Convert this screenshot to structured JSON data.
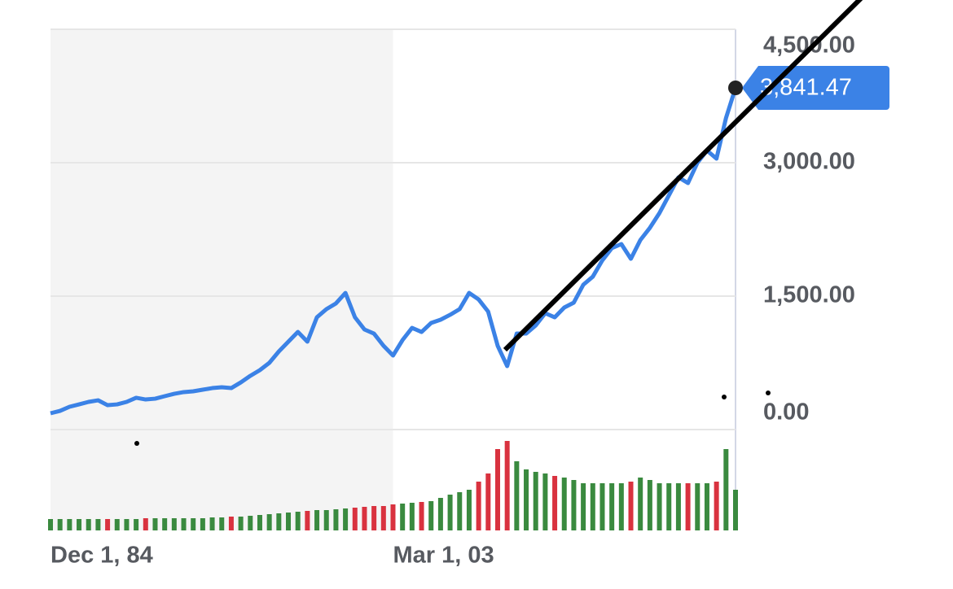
{
  "chart_data": {
    "type": "line",
    "categories": [
      "Dec 1, 84",
      null,
      null,
      null,
      null,
      null,
      null,
      null,
      null,
      null,
      null,
      null,
      null,
      null,
      null,
      null,
      null,
      null,
      null,
      null,
      null,
      null,
      null,
      null,
      null,
      null,
      null,
      null,
      null,
      null,
      null,
      null,
      null,
      null,
      null,
      null,
      "Mar 1, 03",
      null,
      null,
      null,
      null,
      null,
      null,
      null,
      null,
      null,
      null,
      null,
      null,
      null,
      null,
      null,
      null,
      null,
      null,
      null,
      null,
      null,
      null,
      null,
      null,
      null,
      null,
      null,
      null,
      null,
      null,
      null,
      null,
      null,
      null,
      null,
      null
    ],
    "series": [
      {
        "color": "#3b82e6",
        "values": [
          183,
          210,
          256,
          283,
          311,
          329,
          274,
          283,
          311,
          357,
          338,
          347,
          375,
          402,
          421,
          430,
          448,
          466,
          476,
          466,
          530,
          604,
          668,
          750,
          878,
          988,
          1097,
          988,
          1262,
          1354,
          1418,
          1536,
          1262,
          1125,
          1079,
          942,
          832,
          1006,
          1143,
          1097,
          1198,
          1235,
          1290,
          1354,
          1536,
          1463,
          1326,
          942,
          713,
          1079,
          1079,
          1171,
          1308,
          1262,
          1372,
          1427,
          1628,
          1719,
          1902,
          2040,
          2085,
          1920,
          2131,
          2268,
          2433,
          2634,
          2835,
          2771,
          3000,
          3137,
          3046,
          3503,
          3841.47
        ],
        "value_labels": [
          null,
          null,
          null,
          null,
          null,
          null,
          null,
          null,
          null,
          null,
          null,
          null,
          null,
          null,
          null,
          null,
          null,
          null,
          null,
          null,
          null,
          null,
          null,
          null,
          null,
          null,
          null,
          null,
          null,
          null,
          null,
          null,
          null,
          null,
          null,
          null,
          null,
          null,
          null,
          null,
          null,
          null,
          null,
          null,
          null,
          null,
          null,
          null,
          null,
          null,
          null,
          null,
          null,
          null,
          null,
          null,
          null,
          null,
          null,
          null,
          null,
          null,
          null,
          null,
          null,
          null,
          null,
          null,
          null,
          null,
          null,
          null,
          "3,841.47"
        ]
      }
    ],
    "volume": {
      "up_color": "#3a8a3f",
      "down_color": "#d9323f",
      "values": [
        14,
        14,
        14,
        14,
        14,
        14,
        14,
        14,
        14,
        14,
        15,
        15,
        15,
        15,
        15,
        15,
        15,
        16,
        16,
        17,
        17,
        18,
        19,
        20,
        21,
        22,
        23,
        24,
        25,
        25,
        26,
        27,
        28,
        29,
        30,
        30,
        32,
        33,
        34,
        35,
        36,
        40,
        44,
        47,
        50,
        60,
        70,
        100,
        110,
        85,
        75,
        72,
        70,
        67,
        65,
        62,
        58,
        58,
        58,
        58,
        58,
        60,
        65,
        62,
        58,
        58,
        58,
        58,
        58,
        58,
        60,
        100,
        50
      ]
    },
    "ylim": [
      0,
      4500
    ],
    "yticks": [
      {
        "value": 0,
        "label": "0.00"
      },
      {
        "value": 1500,
        "label": "1,500.00"
      },
      {
        "value": 3000,
        "label": "3,000.00"
      },
      {
        "value": 4500,
        "label": "4,500.00"
      }
    ],
    "grid": true
  }
}
